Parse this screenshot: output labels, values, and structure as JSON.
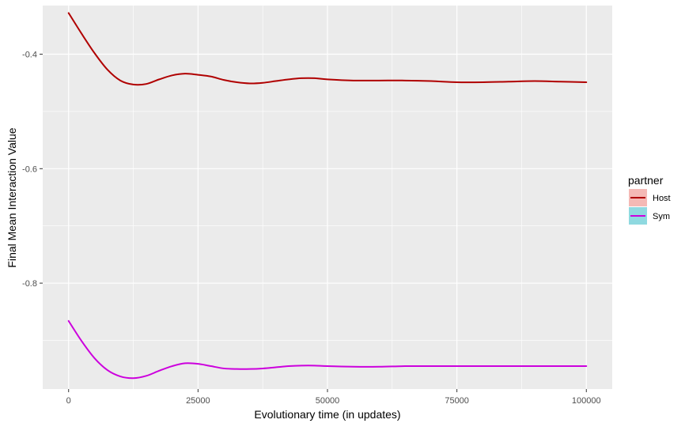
{
  "chart_data": {
    "type": "line",
    "xlabel": "Evolutionary time (in updates)",
    "ylabel": "Final Mean Interaction Value",
    "xlim": [
      -5000,
      105000
    ],
    "ylim": [
      -0.985,
      -0.315
    ],
    "x_ticks": [
      0,
      25000,
      50000,
      75000,
      100000
    ],
    "x_tick_labels": [
      "0",
      "25000",
      "50000",
      "75000",
      "100000"
    ],
    "y_ticks": [
      -0.4,
      -0.6,
      -0.8
    ],
    "y_tick_labels": [
      "-0.4",
      "-0.6",
      "-0.8"
    ],
    "grid": true,
    "legend": {
      "title": "partner",
      "position": "right",
      "entries": [
        {
          "label": "Host",
          "line_color": "#b00000",
          "fill_color": "#f4b9b5"
        },
        {
          "label": "Sym",
          "line_color": "#cc00dd",
          "fill_color": "#8fd9e0"
        }
      ]
    },
    "series": [
      {
        "name": "Host",
        "color": "#b00000",
        "x": [
          0,
          2500,
          5000,
          7500,
          10000,
          12500,
          15000,
          17500,
          20000,
          22500,
          25000,
          27500,
          30000,
          32500,
          35000,
          37500,
          40000,
          42500,
          45000,
          47500,
          50000,
          55000,
          60000,
          65000,
          70000,
          75000,
          80000,
          85000,
          90000,
          95000,
          100000
        ],
        "y": [
          -0.328,
          -0.364,
          -0.398,
          -0.427,
          -0.446,
          -0.453,
          -0.452,
          -0.444,
          -0.437,
          -0.434,
          -0.436,
          -0.439,
          -0.445,
          -0.449,
          -0.451,
          -0.45,
          -0.447,
          -0.444,
          -0.442,
          -0.442,
          -0.444,
          -0.446,
          -0.446,
          -0.446,
          -0.447,
          -0.449,
          -0.449,
          -0.448,
          -0.447,
          -0.448,
          -0.449
        ]
      },
      {
        "name": "Sym",
        "color": "#cc00dd",
        "x": [
          0,
          2500,
          5000,
          7500,
          10000,
          12500,
          15000,
          17500,
          20000,
          22500,
          25000,
          27500,
          30000,
          32500,
          35000,
          37500,
          40000,
          42500,
          45000,
          47500,
          50000,
          55000,
          60000,
          65000,
          70000,
          75000,
          80000,
          85000,
          90000,
          95000,
          100000
        ],
        "y": [
          -0.866,
          -0.901,
          -0.931,
          -0.952,
          -0.963,
          -0.966,
          -0.962,
          -0.953,
          -0.945,
          -0.94,
          -0.941,
          -0.945,
          -0.949,
          -0.95,
          -0.95,
          -0.949,
          -0.947,
          -0.945,
          -0.944,
          -0.944,
          -0.945,
          -0.946,
          -0.946,
          -0.945,
          -0.945,
          -0.945,
          -0.945,
          -0.945,
          -0.945,
          -0.945,
          -0.945
        ]
      }
    ]
  }
}
